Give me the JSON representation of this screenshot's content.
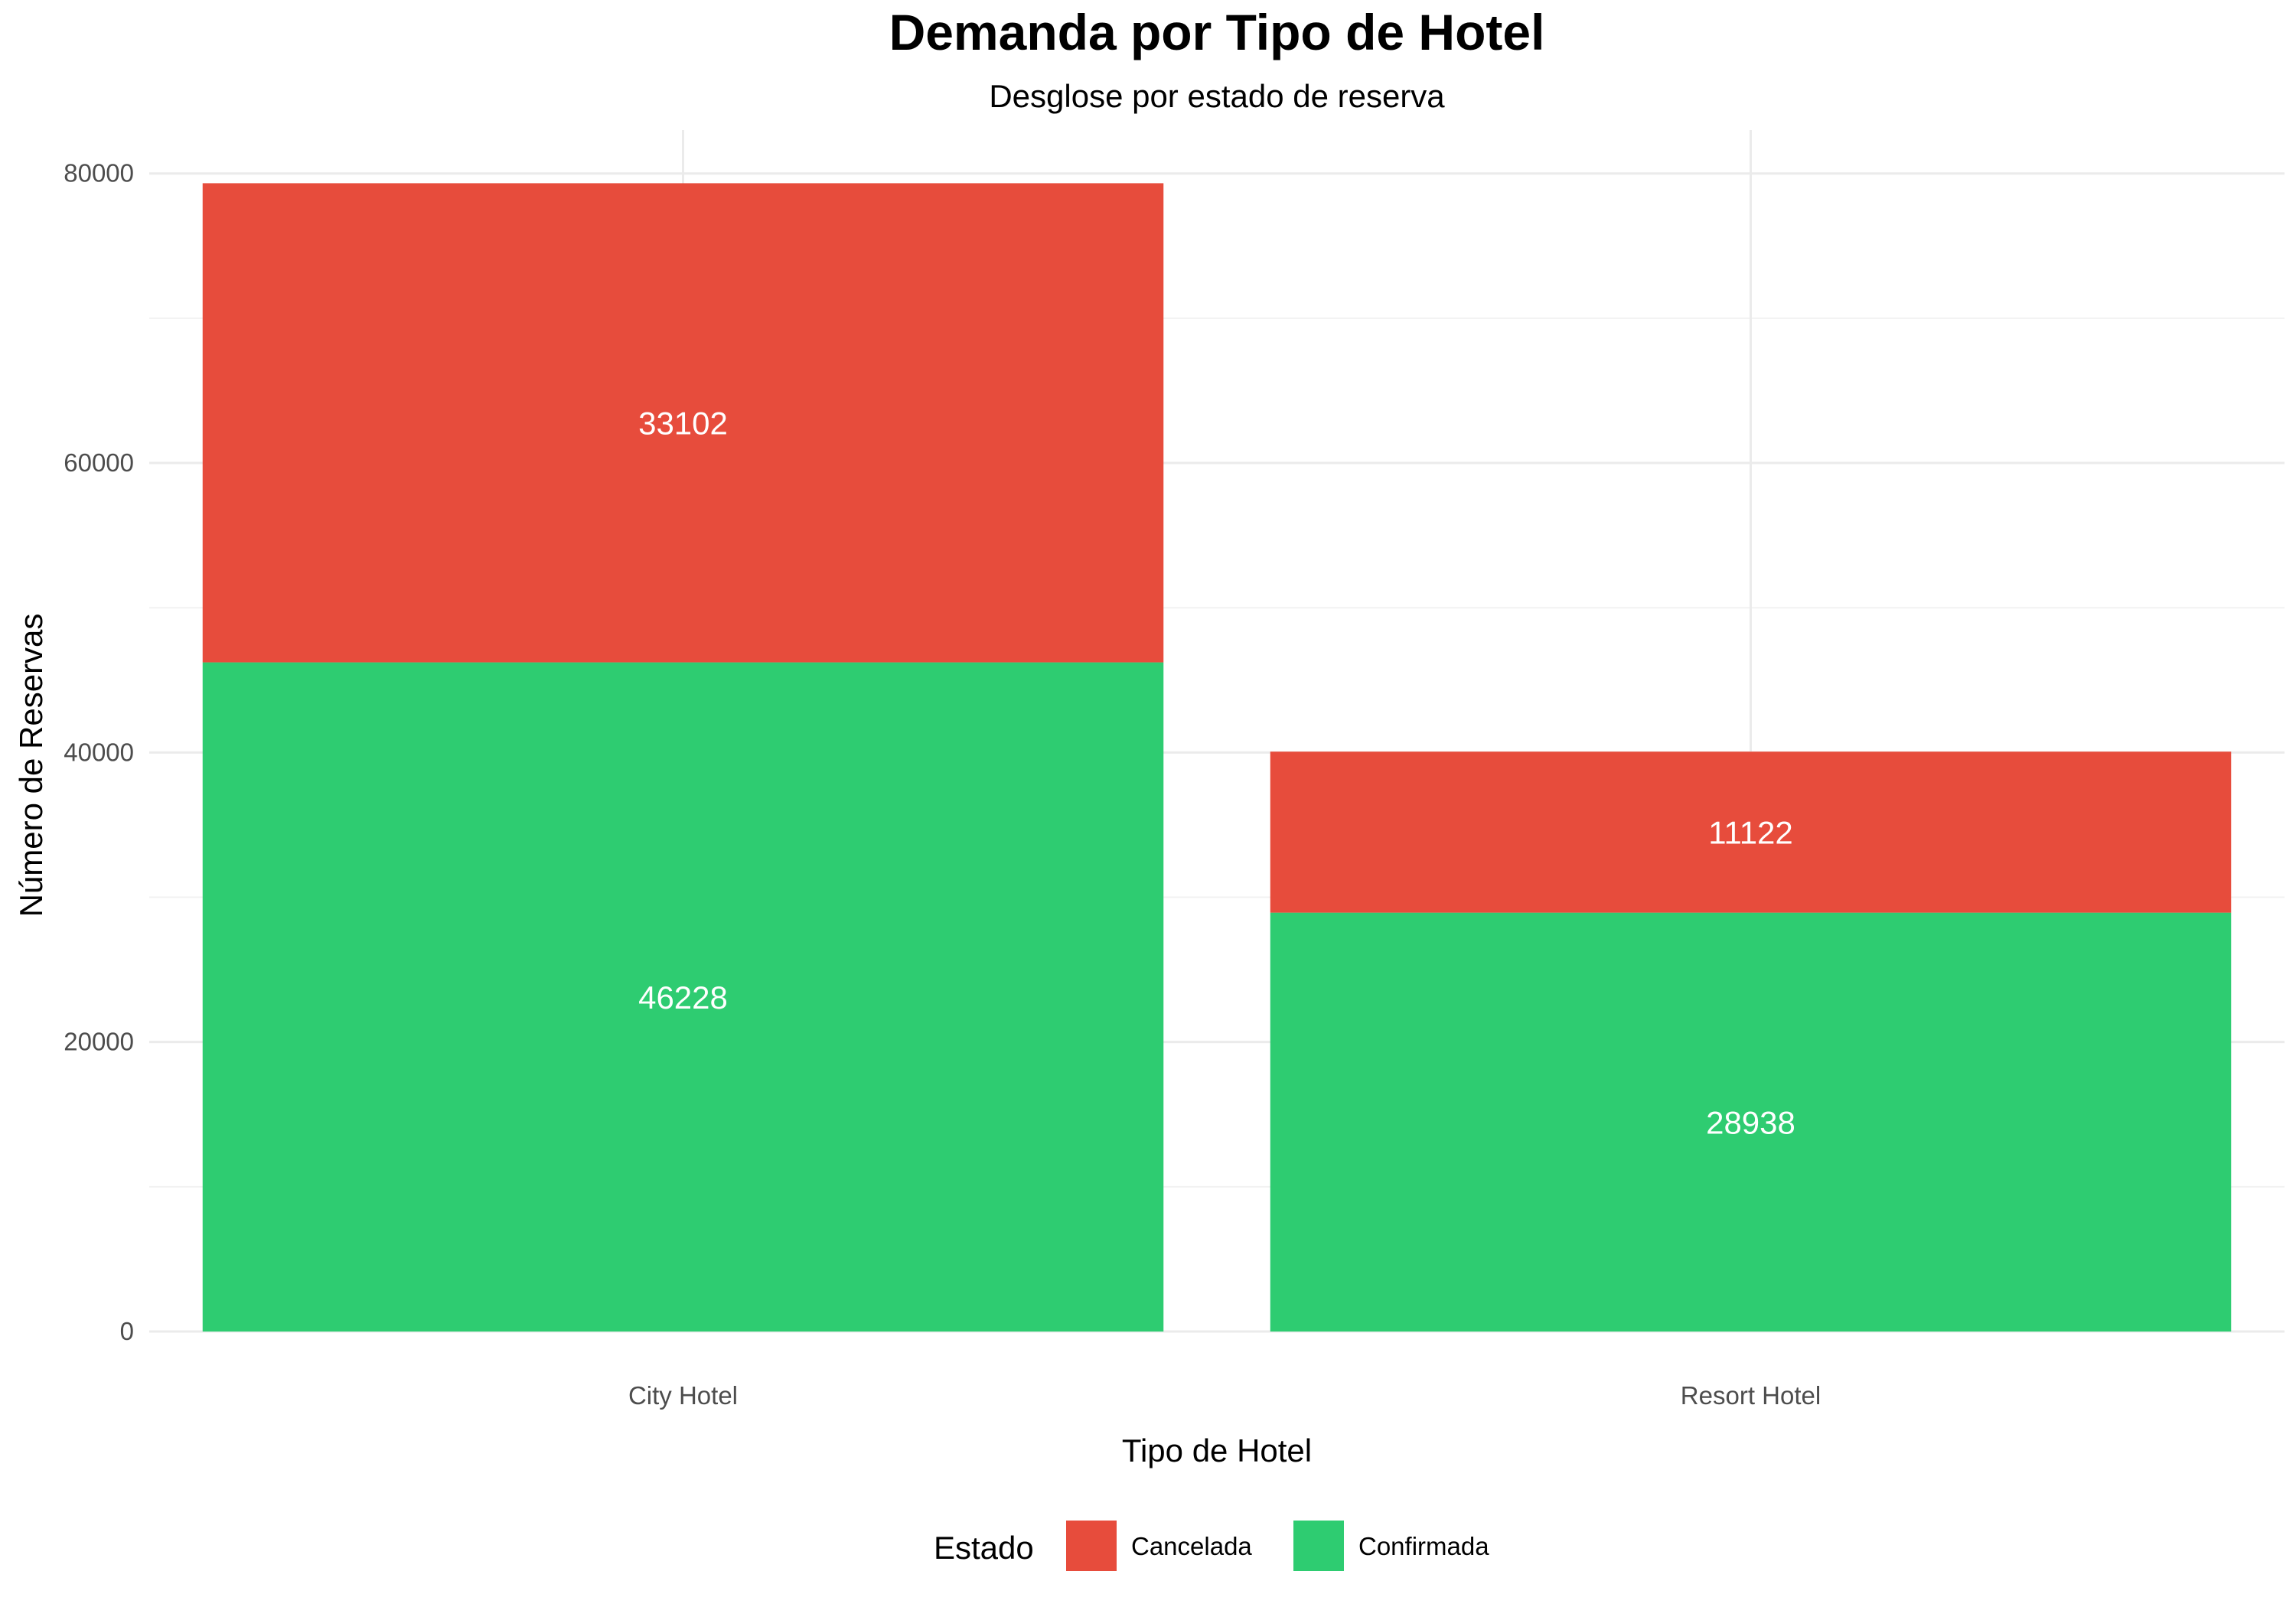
{
  "chart_data": {
    "type": "bar",
    "stacked": true,
    "title": "Demanda por Tipo de Hotel",
    "subtitle": "Desglose por estado de reserva",
    "xlabel": "Tipo de Hotel",
    "ylabel": "Número de Reservas",
    "categories": [
      "City Hotel",
      "Resort Hotel"
    ],
    "ylim": [
      0,
      83000
    ],
    "yticks": [
      0,
      20000,
      40000,
      60000,
      80000
    ],
    "grid": true,
    "legend": {
      "title": "Estado",
      "position": "bottom"
    },
    "series": [
      {
        "name": "Confirmada",
        "color": "#2ECC71",
        "values": [
          46228,
          28938
        ]
      },
      {
        "name": "Cancelada",
        "color": "#E74C3C",
        "values": [
          33102,
          11122
        ]
      }
    ],
    "legend_order": [
      "Cancelada",
      "Confirmada"
    ]
  }
}
